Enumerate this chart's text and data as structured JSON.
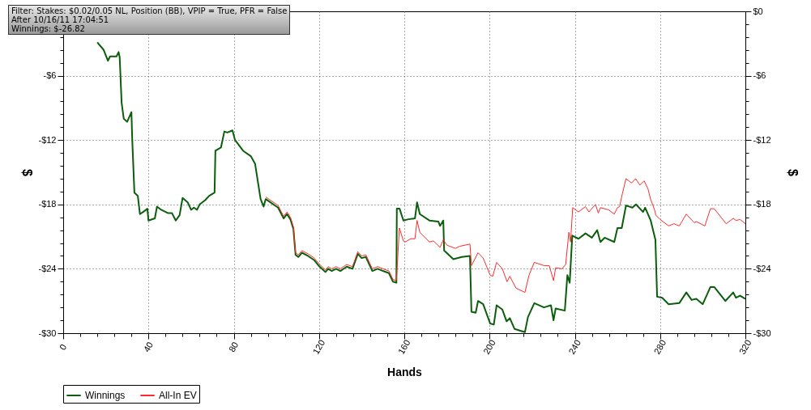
{
  "chart_data": {
    "type": "line",
    "xlabel": "Hands",
    "ylabel": "$",
    "y2label": "$",
    "annotations": [
      "Filter: Stakes: $0.02/0.05 NL, Position (BB), VPIP = True, PFR = False",
      "After 10/16/11 17:04:51",
      "Winnings: $-26.82"
    ],
    "xlim": [
      0,
      320
    ],
    "xticks": [
      0,
      {
        "value": 8,
        "label": null
      },
      {
        "value": 16,
        "label": null
      },
      {
        "value": 24,
        "label": null
      },
      {
        "value": 32,
        "label": null
      },
      40,
      {
        "value": 48,
        "label": null
      },
      {
        "value": 56,
        "label": null
      },
      {
        "value": 64,
        "label": null
      },
      {
        "value": 72,
        "label": null
      },
      80,
      {
        "value": 88,
        "label": null
      },
      {
        "value": 96,
        "label": null
      },
      {
        "value": 104,
        "label": null
      },
      {
        "value": 112,
        "label": null
      },
      120,
      {
        "value": 128,
        "label": null
      },
      {
        "value": 136,
        "label": null
      },
      {
        "value": 144,
        "label": null
      },
      {
        "value": 152,
        "label": null
      },
      160,
      {
        "value": 168,
        "label": null
      },
      {
        "value": 176,
        "label": null
      },
      {
        "value": 184,
        "label": null
      },
      {
        "value": 192,
        "label": null
      },
      200,
      {
        "value": 208,
        "label": null
      },
      {
        "value": 216,
        "label": null
      },
      {
        "value": 224,
        "label": null
      },
      {
        "value": 232,
        "label": null
      },
      240,
      {
        "value": 248,
        "label": null
      },
      {
        "value": 256,
        "label": null
      },
      {
        "value": 264,
        "label": null
      },
      {
        "value": 272,
        "label": null
      },
      280,
      {
        "value": 288,
        "label": null
      },
      {
        "value": 296,
        "label": null
      },
      {
        "value": 304,
        "label": null
      },
      {
        "value": 312,
        "label": null
      },
      320
    ],
    "ylim": [
      -30,
      0
    ],
    "yticks": [
      {
        "value": -30,
        "label": "-$30"
      },
      {
        "value": -28.8,
        "label": null
      },
      {
        "value": -27.6,
        "label": null
      },
      {
        "value": -26.4,
        "label": null
      },
      {
        "value": -25.2,
        "label": null
      },
      {
        "value": -24,
        "label": "-$24"
      },
      {
        "value": -22.8,
        "label": null
      },
      {
        "value": -21.6,
        "label": null
      },
      {
        "value": -20.4,
        "label": null
      },
      {
        "value": -19.2,
        "label": null
      },
      {
        "value": -18,
        "label": "-$18"
      },
      {
        "value": -16.8,
        "label": null
      },
      {
        "value": -15.6,
        "label": null
      },
      {
        "value": -14.4,
        "label": null
      },
      {
        "value": -13.2,
        "label": null
      },
      {
        "value": -12,
        "label": "-$12"
      },
      {
        "value": -10.8,
        "label": null
      },
      {
        "value": -9.6,
        "label": null
      },
      {
        "value": -8.4,
        "label": null
      },
      {
        "value": -7.2,
        "label": null
      },
      {
        "value": -6,
        "label": "-$6"
      },
      {
        "value": -4.8,
        "label": null
      },
      {
        "value": -3.6,
        "label": null
      },
      {
        "value": -2.4,
        "label": null
      },
      {
        "value": -1.2,
        "label": null
      },
      {
        "value": 0,
        "label": null
      }
    ],
    "y2lim": [
      -30,
      0
    ],
    "y2ticks": [
      {
        "value": -30,
        "label": "-$30"
      },
      {
        "value": -28.8,
        "label": null
      },
      {
        "value": -27.6,
        "label": null
      },
      {
        "value": -26.4,
        "label": null
      },
      {
        "value": -25.2,
        "label": null
      },
      {
        "value": -24,
        "label": "-$24"
      },
      {
        "value": -22.8,
        "label": null
      },
      {
        "value": -21.6,
        "label": null
      },
      {
        "value": -20.4,
        "label": null
      },
      {
        "value": -19.2,
        "label": null
      },
      {
        "value": -18,
        "label": "-$18"
      },
      {
        "value": -16.8,
        "label": null
      },
      {
        "value": -15.6,
        "label": null
      },
      {
        "value": -14.4,
        "label": null
      },
      {
        "value": -13.2,
        "label": null
      },
      {
        "value": -12,
        "label": "-$12"
      },
      {
        "value": -10.8,
        "label": null
      },
      {
        "value": -9.6,
        "label": null
      },
      {
        "value": -8.4,
        "label": null
      },
      {
        "value": -7.2,
        "label": null
      },
      {
        "value": -6,
        "label": "-$6"
      },
      {
        "value": -4.8,
        "label": null
      },
      {
        "value": -3.6,
        "label": null
      },
      {
        "value": -2.4,
        "label": null
      },
      {
        "value": -1.2,
        "label": null
      },
      {
        "value": 0,
        "label": "$0"
      }
    ],
    "grid": true,
    "legend": "bottom left",
    "line_style": "solid",
    "series": [
      {
        "name": "Winnings",
        "color": "#0b5e0b",
        "x": [
          16,
          19,
          21,
          22,
          25,
          26,
          26.5,
          27.4,
          28.4,
          30,
          32,
          32.4,
          33.4,
          35,
          36,
          37.5,
          39.5,
          40,
          43,
          44,
          46,
          49,
          51,
          52.8,
          54.6,
          56,
          58.4,
          60,
          61.3,
          62.8,
          64,
          66.6,
          68.5,
          71,
          71.4,
          74,
          75.6,
          77,
          79.4,
          80.6,
          84.4,
          88,
          90,
          92.6,
          94,
          95,
          100.8,
          103.4,
          105,
          106.6,
          108,
          109,
          110.3,
          112,
          114.8,
          117.8,
          119.8,
          123,
          124.3,
          126,
          128,
          130,
          133,
          135.7,
          138.2,
          140,
          142,
          145,
          147.5,
          150,
          152.8,
          154.7,
          156.3,
          156.5,
          157.8,
          159.6,
          161.5,
          165,
          166,
          167.3,
          171.8,
          176,
          176.8,
          178.3,
          178.7,
          183,
          187,
          190.8,
          191.5,
          193.5,
          194.6,
          197,
          200.3,
          202,
          203.3,
          206,
          208,
          209.5,
          211.7,
          216.6,
          218,
          221,
          225.5,
          228.8,
          230,
          231,
          235.3,
          236.5,
          237.6,
          238.8,
          241.7,
          245,
          248,
          250.5,
          252,
          254,
          258.5,
          260,
          262,
          264,
          267,
          268.7,
          272,
          273,
          275.6,
          277.8,
          278.6,
          281,
          284,
          289,
          292.3,
          294.8,
          297,
          300,
          303.6,
          305.4,
          310.6,
          314.3,
          315.6,
          317.5,
          320
        ],
        "values": [
          -2.9,
          -3.6,
          -4.6,
          -4.2,
          -4.2,
          -3.8,
          -4.3,
          -8.5,
          -10.0,
          -10.3,
          -9.4,
          -12.0,
          -16.9,
          -17.2,
          -18.9,
          -18.7,
          -18.4,
          -19.5,
          -19.3,
          -18.2,
          -18.5,
          -18.8,
          -18.8,
          -19.5,
          -19.0,
          -17.4,
          -17.8,
          -18.5,
          -18.3,
          -18.5,
          -18.0,
          -17.6,
          -17.2,
          -16.9,
          -13.0,
          -12.7,
          -11.2,
          -11.3,
          -11.1,
          -12.0,
          -13.0,
          -13.5,
          -14.2,
          -17.5,
          -18.2,
          -17.5,
          -18.3,
          -19.3,
          -18.9,
          -19.4,
          -20.3,
          -22.7,
          -22.9,
          -22.5,
          -22.8,
          -23.2,
          -23.7,
          -24.3,
          -24.0,
          -24.2,
          -24.0,
          -24.2,
          -23.8,
          -24.0,
          -22.6,
          -23.0,
          -22.9,
          -24.2,
          -24.0,
          -24.2,
          -24.4,
          -25.2,
          -25.3,
          -18.4,
          -18.4,
          -19.5,
          -19.4,
          -19.3,
          -17.8,
          -18.9,
          -19.5,
          -19.6,
          -20.0,
          -19.5,
          -22.3,
          -23.1,
          -22.9,
          -22.8,
          -28.0,
          -28.1,
          -27.0,
          -27.3,
          -29.1,
          -29.2,
          -27.4,
          -27.8,
          -28.9,
          -28.6,
          -29.6,
          -29.9,
          -28.5,
          -27.2,
          -27.6,
          -27.4,
          -28.8,
          -27.7,
          -27.9,
          -24.6,
          -25.3,
          -20.9,
          -21.2,
          -20.7,
          -21.1,
          -20.4,
          -21.5,
          -21.1,
          -21.5,
          -20.2,
          -20.2,
          -18.1,
          -18.3,
          -18.0,
          -18.7,
          -18.3,
          -19.5,
          -21.3,
          -26.6,
          -26.7,
          -27.3,
          -27.2,
          -26.2,
          -26.9,
          -26.8,
          -27.3,
          -25.7,
          -25.7,
          -27.0,
          -26.2,
          -26.7,
          -26.5,
          -26.8
        ]
      },
      {
        "name": "All-In EV",
        "color": "#ff2a2a",
        "x": [
          95,
          100.8,
          103.4,
          105,
          106.6,
          108,
          109,
          110.3,
          112,
          114.8,
          117.8,
          119.8,
          123,
          124.3,
          126,
          128,
          130,
          133,
          135.7,
          138.2,
          140,
          142,
          145,
          147.5,
          150,
          152.8,
          154.7,
          156.3,
          157.7,
          159.6,
          160.4,
          163,
          165,
          166,
          167.3,
          171.8,
          173.7,
          176.8,
          178.3,
          180,
          184,
          186,
          190.8,
          191.5,
          194.6,
          197,
          200.3,
          201.5,
          203.3,
          206,
          208.2,
          209.5,
          212.4,
          216.6,
          218.5,
          221,
          225.5,
          228,
          230,
          231,
          234,
          235.7,
          237.2,
          238,
          239,
          241.7,
          245,
          246.6,
          249.7,
          251,
          252,
          255.8,
          258.5,
          260,
          261,
          262.3,
          264,
          266.6,
          268.5,
          270.5,
          272.5,
          274.4,
          275.5,
          277.4,
          278,
          280,
          284,
          286.5,
          289,
          292.3,
          296,
          297,
          301,
          303.6,
          305.4,
          311,
          314.3,
          315.6,
          317.5,
          320
        ],
        "values": [
          -17.3,
          -18.1,
          -19.1,
          -18.7,
          -19.2,
          -20.1,
          -22.5,
          -22.7,
          -22.3,
          -22.6,
          -23.0,
          -23.5,
          -24.1,
          -23.8,
          -24.0,
          -23.8,
          -24.0,
          -23.6,
          -23.8,
          -22.4,
          -22.8,
          -22.7,
          -24.0,
          -23.8,
          -24.0,
          -24.2,
          -25.0,
          -25.1,
          -20.2,
          -21.4,
          -21.5,
          -21.2,
          -21.2,
          -19.5,
          -20.6,
          -21.5,
          -21.4,
          -22.0,
          -21.3,
          -21.8,
          -22.1,
          -21.9,
          -21.7,
          -23.7,
          -22.5,
          -23.0,
          -24.6,
          -24.7,
          -23.4,
          -24.0,
          -25.2,
          -24.7,
          -25.8,
          -26.2,
          -24.6,
          -23.4,
          -23.7,
          -23.7,
          -25.1,
          -23.9,
          -24.0,
          -23.6,
          -20.6,
          -21.5,
          -18.3,
          -18.7,
          -18.2,
          -18.7,
          -18.0,
          -18.8,
          -18.3,
          -18.5,
          -18.9,
          -18.3,
          -18.2,
          -17.0,
          -15.6,
          -16.0,
          -15.6,
          -16.2,
          -15.8,
          -16.6,
          -17.5,
          -18.5,
          -19.0,
          -19.4,
          -20.0,
          -19.8,
          -20.0,
          -18.9,
          -19.7,
          -19.6,
          -20.0,
          -18.4,
          -18.4,
          -19.8,
          -19.3,
          -19.5,
          -19.4,
          -19.8
        ]
      }
    ]
  }
}
